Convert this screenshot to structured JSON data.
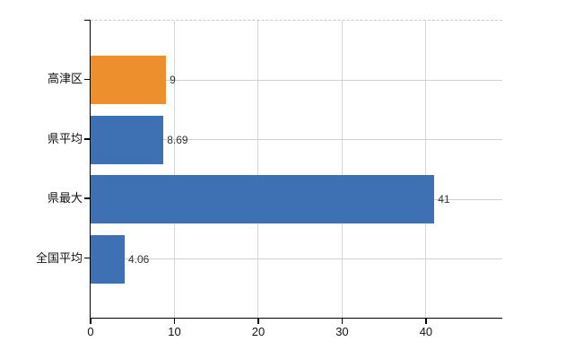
{
  "chart_data": {
    "type": "bar",
    "orientation": "horizontal",
    "title": "",
    "xlabel": "",
    "ylabel": "",
    "categories": [
      "高津区",
      "県平均",
      "県最大",
      "全国平均"
    ],
    "values": [
      9,
      8.69,
      41,
      4.06
    ],
    "value_labels": [
      "9",
      "8.69",
      "41",
      "4.06"
    ],
    "x_ticks": [
      0,
      10,
      20,
      30,
      40
    ],
    "x_tick_labels": [
      "0",
      "10",
      "20",
      "30",
      "40"
    ],
    "xlim": [
      0,
      49.1
    ],
    "grid": true,
    "legend": false,
    "bar_colors": [
      "#EE8F2E",
      "#3E71B4",
      "#3E71B4",
      "#3E71B4"
    ]
  },
  "colors": {
    "highlight_bar": "#EE8F2E",
    "default_bar": "#3E71B4",
    "axis": "#000000",
    "h_gridline": "#ccd2cb",
    "v_gridline": "#d6d9d3",
    "top_border": "#c9c9c9",
    "text": "#111111",
    "background": "#ffffff"
  }
}
